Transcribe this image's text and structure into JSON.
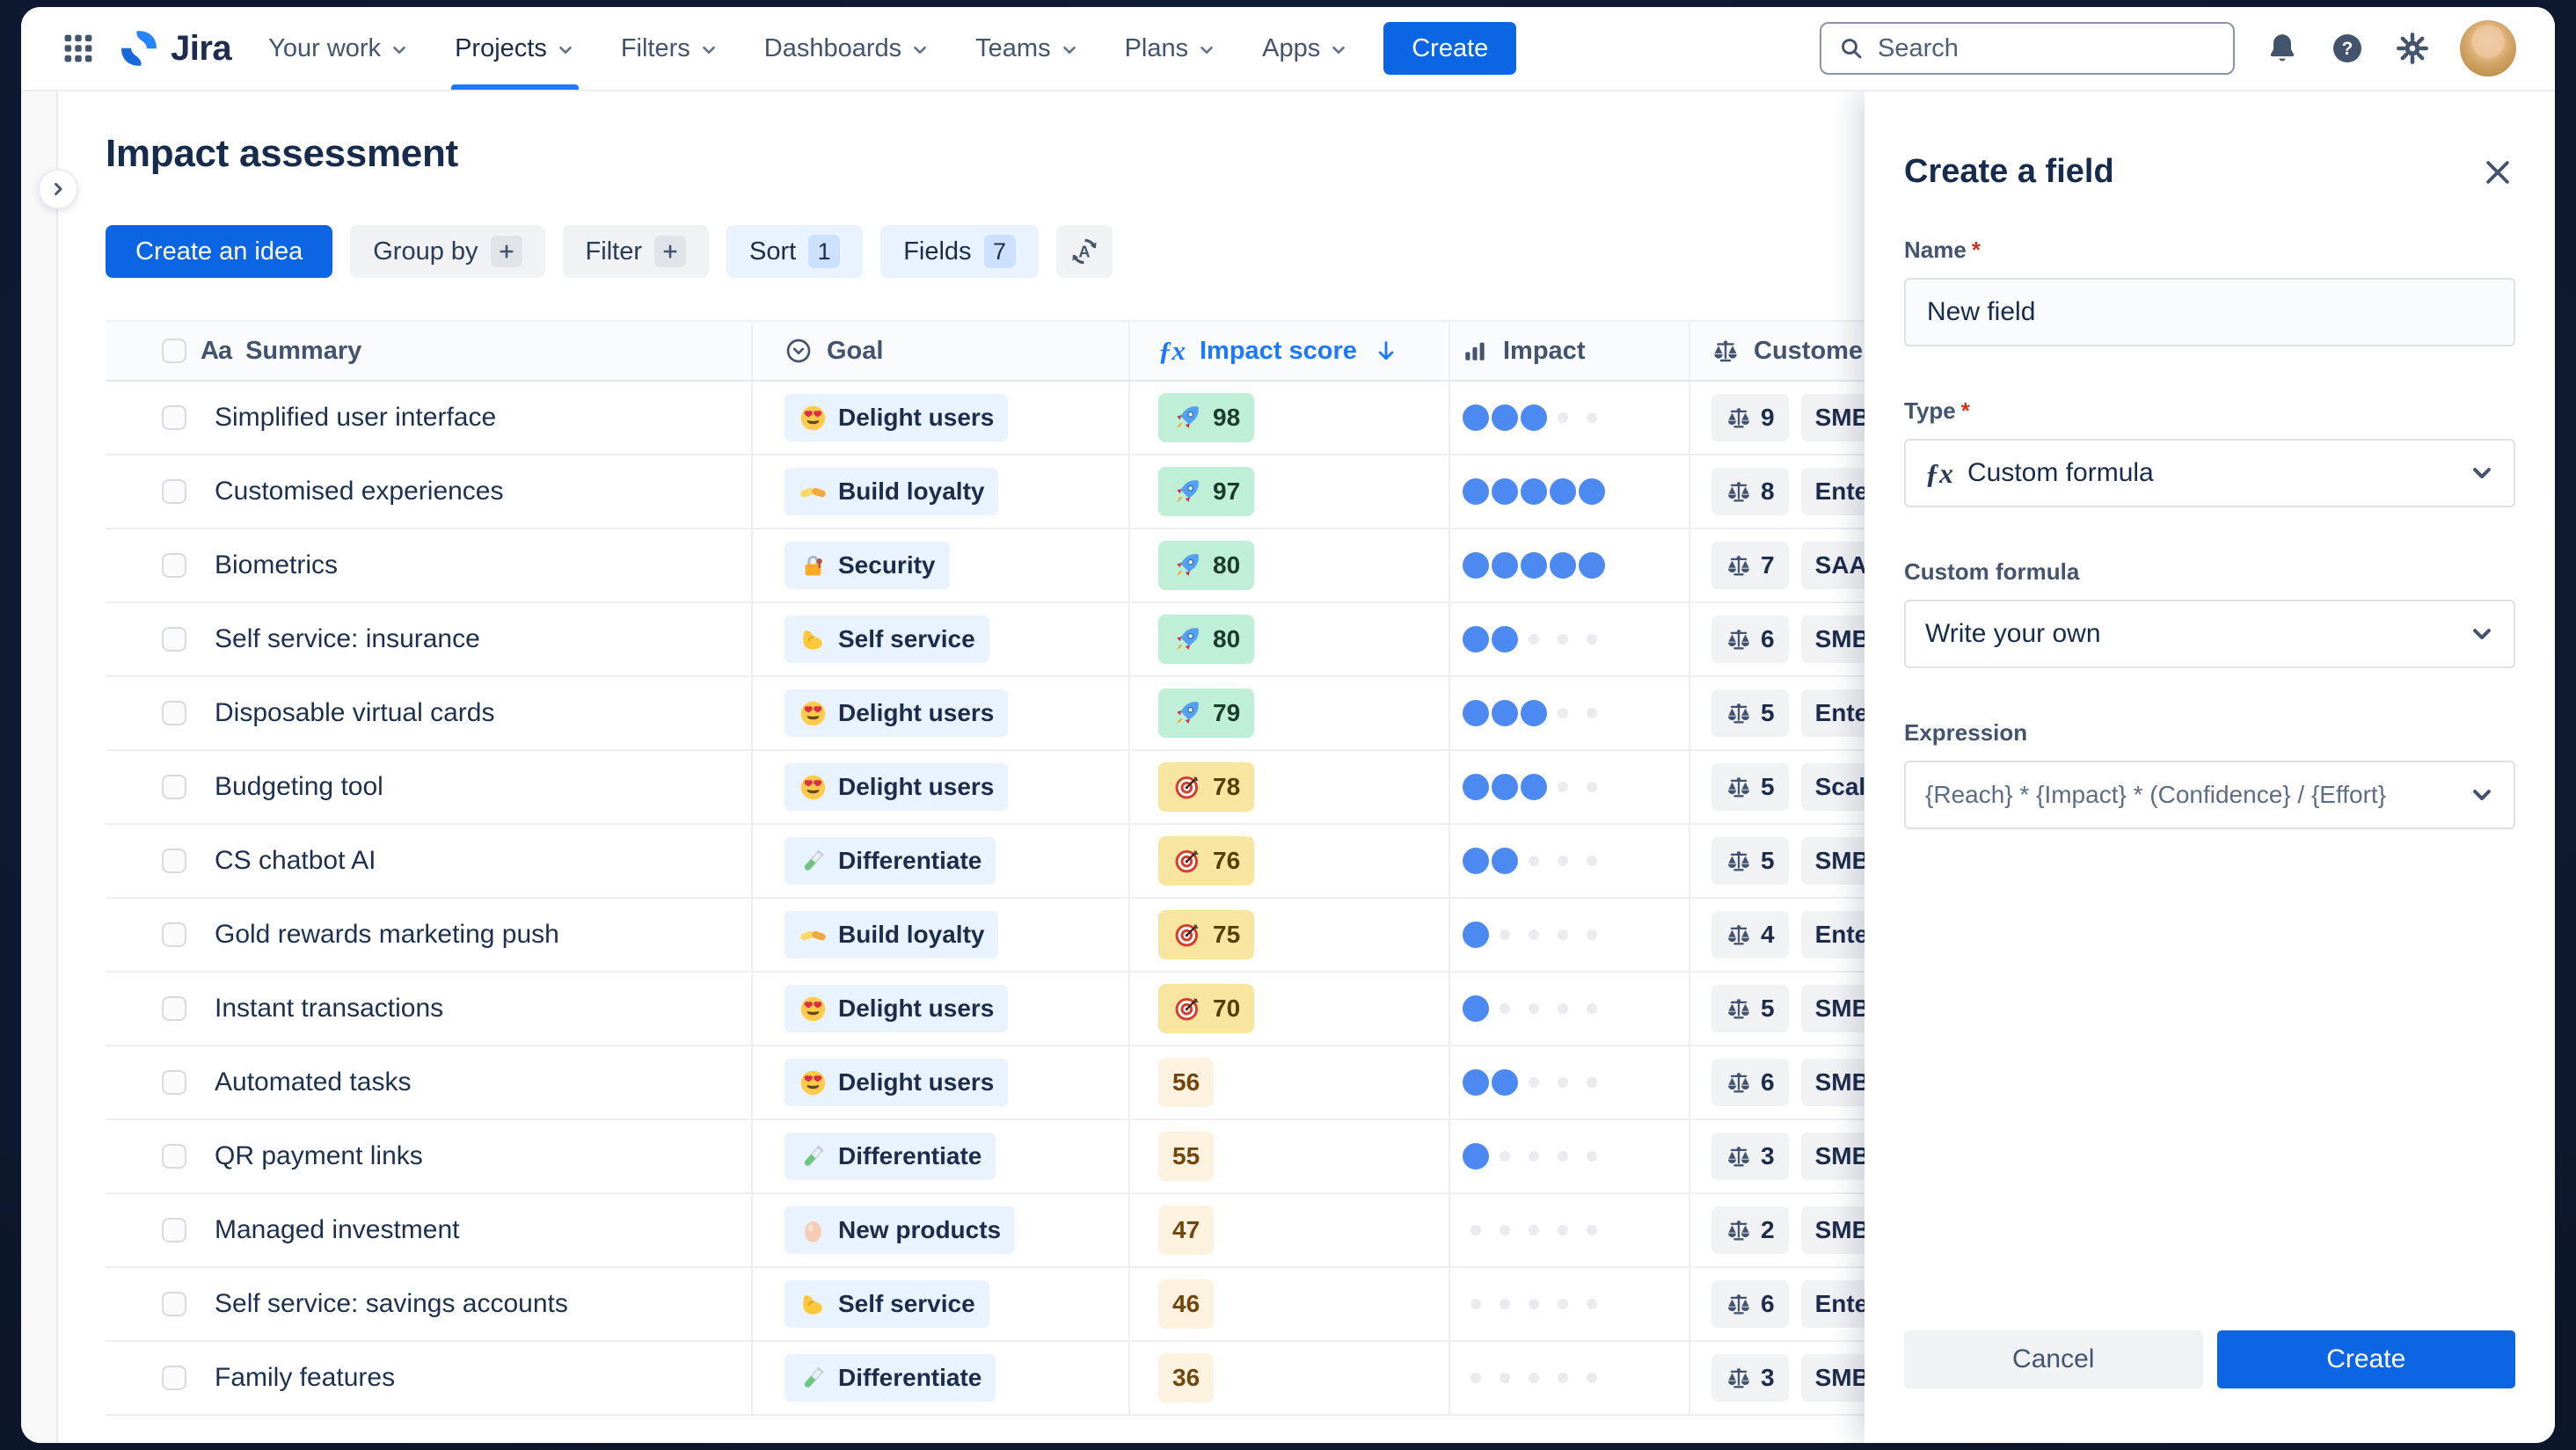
{
  "navbar": {
    "logo_text": "Jira",
    "items": [
      {
        "label": "Your work"
      },
      {
        "label": "Projects",
        "active": true
      },
      {
        "label": "Filters"
      },
      {
        "label": "Dashboards"
      },
      {
        "label": "Teams"
      },
      {
        "label": "Plans"
      },
      {
        "label": "Apps"
      }
    ],
    "create_label": "Create",
    "search": {
      "placeholder": "Search"
    },
    "icons": [
      "app-switcher-icon",
      "notifications-icon",
      "help-icon",
      "settings-icon",
      "avatar"
    ]
  },
  "page": {
    "title": "Impact assessment",
    "toolbar": {
      "create_idea": "Create an idea",
      "group_by": "Group by",
      "filter": "Filter",
      "sort": {
        "label": "Sort",
        "count": "1"
      },
      "fields": {
        "label": "Fields",
        "count": "7"
      },
      "extra_icon": "sort-az-icon"
    }
  },
  "table": {
    "impact_max": 5,
    "columns": [
      {
        "label": "Summary",
        "icon": "text-type"
      },
      {
        "label": "Goal",
        "icon": "select-type"
      },
      {
        "label": "Impact score",
        "icon": "formula",
        "sorted": "desc"
      },
      {
        "label": "Impact",
        "icon": "rating"
      },
      {
        "label": "Customer",
        "icon": "scales"
      }
    ],
    "rows": [
      {
        "summary": "Simplified user interface",
        "goal": {
          "label": "Delight users",
          "icon": "heart-eyes"
        },
        "score": {
          "value": "98",
          "tier": "green",
          "icon": "rocket"
        },
        "impact": 3,
        "customer": {
          "weight": "9",
          "segment": "SMB"
        }
      },
      {
        "summary": "Customised experiences",
        "goal": {
          "label": "Build loyalty",
          "icon": "handshake"
        },
        "score": {
          "value": "97",
          "tier": "green",
          "icon": "rocket"
        },
        "impact": 5,
        "customer": {
          "weight": "8",
          "segment": "Enterprise"
        }
      },
      {
        "summary": "Biometrics",
        "goal": {
          "label": "Security",
          "icon": "lock"
        },
        "score": {
          "value": "80",
          "tier": "green",
          "icon": "rocket"
        },
        "impact": 5,
        "customer": {
          "weight": "7",
          "segment": "SAAS"
        }
      },
      {
        "summary": "Self service: insurance",
        "goal": {
          "label": "Self service",
          "icon": "bicep"
        },
        "score": {
          "value": "80",
          "tier": "green",
          "icon": "rocket"
        },
        "impact": 2,
        "customer": {
          "weight": "6",
          "segment": "SMB"
        }
      },
      {
        "summary": "Disposable virtual cards",
        "goal": {
          "label": "Delight users",
          "icon": "heart-eyes"
        },
        "score": {
          "value": "79",
          "tier": "green",
          "icon": "rocket"
        },
        "impact": 3,
        "customer": {
          "weight": "5",
          "segment": "Enterprise"
        }
      },
      {
        "summary": "Budgeting tool",
        "goal": {
          "label": "Delight users",
          "icon": "heart-eyes"
        },
        "score": {
          "value": "78",
          "tier": "yellow",
          "icon": "target"
        },
        "impact": 3,
        "customer": {
          "weight": "5",
          "segment": "Scaleup"
        }
      },
      {
        "summary": "CS chatbot AI",
        "goal": {
          "label": "Differentiate",
          "icon": "test-tube"
        },
        "score": {
          "value": "76",
          "tier": "yellow",
          "icon": "target"
        },
        "impact": 2,
        "customer": {
          "weight": "5",
          "segment": "SMB"
        }
      },
      {
        "summary": "Gold rewards marketing push",
        "goal": {
          "label": "Build loyalty",
          "icon": "handshake"
        },
        "score": {
          "value": "75",
          "tier": "yellow",
          "icon": "target"
        },
        "impact": 1,
        "customer": {
          "weight": "4",
          "segment": "Enterprise"
        }
      },
      {
        "summary": "Instant transactions",
        "goal": {
          "label": "Delight users",
          "icon": "heart-eyes"
        },
        "score": {
          "value": "70",
          "tier": "yellow",
          "icon": "target"
        },
        "impact": 1,
        "customer": {
          "weight": "5",
          "segment": "SMB"
        }
      },
      {
        "summary": "Automated tasks",
        "goal": {
          "label": "Delight users",
          "icon": "heart-eyes"
        },
        "score": {
          "value": "56",
          "tier": "plain",
          "icon": null
        },
        "impact": 2,
        "customer": {
          "weight": "6",
          "segment": "SMB"
        }
      },
      {
        "summary": "QR payment links",
        "goal": {
          "label": "Differentiate",
          "icon": "test-tube"
        },
        "score": {
          "value": "55",
          "tier": "plain",
          "icon": null
        },
        "impact": 1,
        "customer": {
          "weight": "3",
          "segment": "SMB"
        }
      },
      {
        "summary": "Managed investment",
        "goal": {
          "label": "New products",
          "icon": "egg"
        },
        "score": {
          "value": "47",
          "tier": "plain",
          "icon": null
        },
        "impact": 0,
        "customer": {
          "weight": "2",
          "segment": "SMB"
        }
      },
      {
        "summary": "Self service: savings accounts",
        "goal": {
          "label": "Self service",
          "icon": "bicep"
        },
        "score": {
          "value": "46",
          "tier": "plain",
          "icon": null
        },
        "impact": 0,
        "customer": {
          "weight": "6",
          "segment": "Enterprise"
        }
      },
      {
        "summary": "Family features",
        "goal": {
          "label": "Differentiate",
          "icon": "test-tube"
        },
        "score": {
          "value": "36",
          "tier": "plain",
          "icon": null
        },
        "impact": 0,
        "customer": {
          "weight": "3",
          "segment": "SMB"
        }
      }
    ]
  },
  "panel": {
    "title": "Create a field",
    "required_mark": "*",
    "name": {
      "label": "Name",
      "value": "New field"
    },
    "type": {
      "label": "Type",
      "value": "Custom formula",
      "icon": "formula"
    },
    "custom_formula": {
      "label": "Custom formula",
      "value": "Write your own"
    },
    "expression": {
      "label": "Expression",
      "value": "{Reach} * {Impact} * (Confidence} / {Effort}"
    },
    "cancel_label": "Cancel",
    "create_label": "Create"
  },
  "colors": {
    "accent_blue": "#0C66E4",
    "link_blue": "#1D7AFC",
    "score_green_bg": "#BFEFD7",
    "score_yellow_bg": "#F8E6A0",
    "score_plain_bg": "#FDF1E0",
    "impact_dot": "#4C89F1",
    "goal_badge_bg": "#E9F2FF",
    "gray_badge_bg": "#F1F2F4"
  }
}
